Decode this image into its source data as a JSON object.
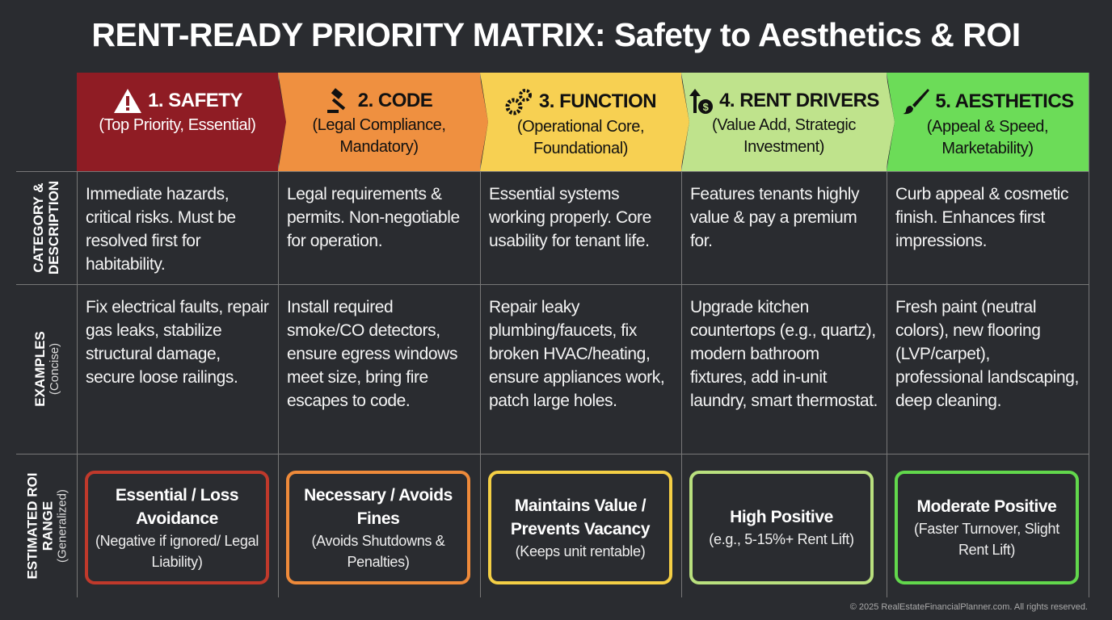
{
  "title": "RENT-READY PRIORITY MATRIX: Safety to Aesthetics & ROI",
  "row_labels": [
    {
      "main": "CATEGORY &",
      "main2": "DESCRIPTION",
      "sub": ""
    },
    {
      "main": "EXAMPLES",
      "main2": "",
      "sub": "(Concise)"
    },
    {
      "main": "ESTIMATED ROI",
      "main2": "RANGE",
      "sub": "(Generalized)"
    }
  ],
  "columns": [
    {
      "title": "1. SAFETY",
      "subtitle": "(Top Priority, Essential)",
      "icon": "warning-icon",
      "color": "#8f1c24",
      "text_color": "#ffffff",
      "roi_border": "#c0392b",
      "description": "Immediate hazards, critical risks. Must be resolved first for habitability.",
      "examples": "Fix electrical faults, repair gas leaks, stabilize structural damage, secure loose railings.",
      "roi_main": "Essential / Loss Avoidance",
      "roi_sub": "(Negative if ignored/ Legal Liability)"
    },
    {
      "title": "2. CODE",
      "subtitle": "(Legal Compliance, Mandatory)",
      "icon": "gavel-icon",
      "color": "#ef9040",
      "text_color": "#111111",
      "roi_border": "#ee8a3a",
      "description": "Legal requirements & permits. Non-negotiable for operation.",
      "examples": "Install required smoke/CO detectors, ensure egress windows meet size, bring fire escapes to code.",
      "roi_main": "Necessary / Avoids Fines",
      "roi_sub": "(Avoids Shutdowns & Penalties)"
    },
    {
      "title": "3. FUNCTION",
      "subtitle": "(Operational Core, Foundational)",
      "icon": "gears-icon",
      "color": "#f7d052",
      "text_color": "#111111",
      "roi_border": "#f4cf45",
      "description": "Essential systems working properly. Core usability for tenant life.",
      "examples": "Repair leaky plumbing/faucets, fix broken HVAC/heating, ensure appliances work, patch large holes.",
      "roi_main": "Maintains Value / Prevents Vacancy",
      "roi_sub": "(Keeps unit rentable)"
    },
    {
      "title": "4. RENT DRIVERS",
      "subtitle": "(Value Add, Strategic Investment)",
      "icon": "money-up-icon",
      "color": "#bfe38c",
      "text_color": "#111111",
      "roi_border": "#b9e07e",
      "description": "Features tenants highly value & pay a premium for.",
      "examples": "Upgrade kitchen countertops (e.g., quartz), modern bathroom fixtures, add in-unit laundry, smart thermostat.",
      "roi_main": "High Positive",
      "roi_sub": "(e.g., 5-15%+ Rent Lift)"
    },
    {
      "title": "5. AESTHETICS",
      "subtitle": "(Appeal & Speed, Marketability)",
      "icon": "paintbrush-icon",
      "color": "#6cdc58",
      "text_color": "#111111",
      "roi_border": "#62d84c",
      "description": "Curb appeal & cosmetic finish. Enhances first impressions.",
      "examples": "Fresh paint (neutral colors), new flooring (LVP/carpet), professional landscaping, deep cleaning.",
      "roi_main": "Moderate Positive",
      "roi_sub": "(Faster Turnover, Slight Rent Lift)"
    }
  ],
  "footer": "© 2025 RealEstateFinancialPlanner.com. All rights reserved."
}
